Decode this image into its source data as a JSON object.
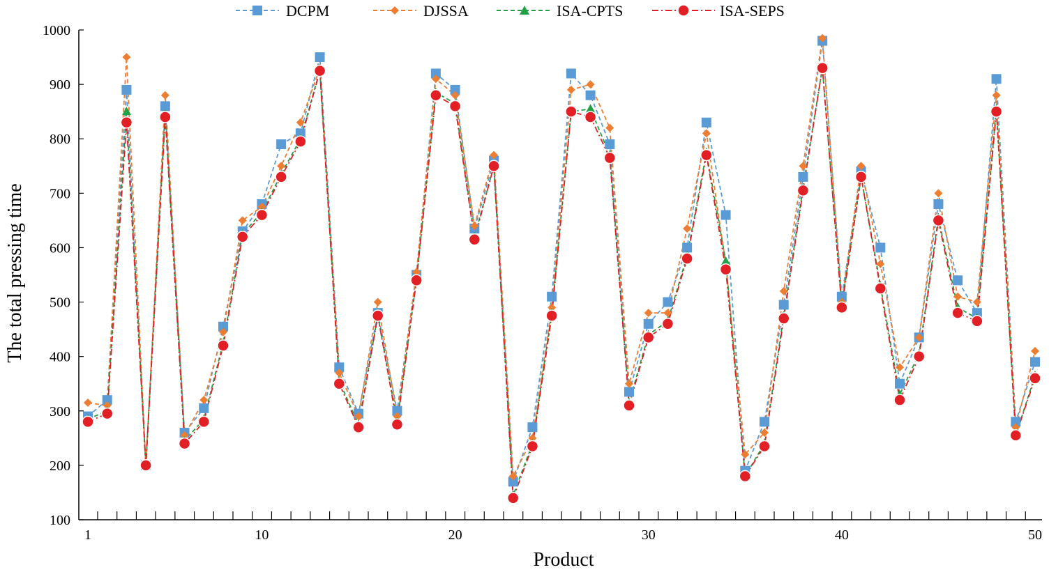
{
  "chart_data": {
    "type": "line",
    "title": "",
    "xlabel": "Product",
    "ylabel": "The total pressing time",
    "ylim": [
      100,
      1000
    ],
    "yticks": [
      100,
      200,
      300,
      400,
      500,
      600,
      700,
      800,
      900,
      1000
    ],
    "xlim": [
      1,
      50
    ],
    "xtick_labels": [
      {
        "value": 1,
        "label": "1"
      },
      {
        "value": 10,
        "label": "10"
      },
      {
        "value": 20,
        "label": "20"
      },
      {
        "value": 30,
        "label": "30"
      },
      {
        "value": 40,
        "label": "40"
      },
      {
        "value": 50,
        "label": "50"
      }
    ],
    "grid": false,
    "legend_position": "top-center",
    "x": [
      1,
      2,
      3,
      4,
      5,
      6,
      7,
      8,
      9,
      10,
      11,
      12,
      13,
      14,
      15,
      16,
      17,
      18,
      19,
      20,
      21,
      22,
      23,
      24,
      25,
      26,
      27,
      28,
      29,
      30,
      31,
      32,
      33,
      34,
      35,
      36,
      37,
      38,
      39,
      40,
      41,
      42,
      43,
      44,
      45,
      46,
      47,
      48,
      49,
      50
    ],
    "series": [
      {
        "name": "DCPM",
        "color": "#5b9bd5",
        "marker": "square",
        "values": [
          290,
          320,
          890,
          200,
          860,
          260,
          305,
          455,
          630,
          680,
          790,
          810,
          950,
          380,
          295,
          480,
          300,
          550,
          920,
          890,
          635,
          760,
          170,
          270,
          510,
          920,
          880,
          790,
          335,
          460,
          500,
          600,
          830,
          660,
          190,
          280,
          495,
          730,
          980,
          510,
          740,
          600,
          350,
          435,
          680,
          540,
          480,
          910,
          280,
          390
        ]
      },
      {
        "name": "DJSSA",
        "color": "#ed7d31",
        "marker": "diamond",
        "values": [
          315,
          310,
          950,
          200,
          880,
          255,
          320,
          445,
          650,
          675,
          750,
          830,
          930,
          370,
          290,
          500,
          290,
          555,
          910,
          880,
          640,
          770,
          180,
          250,
          490,
          890,
          900,
          820,
          350,
          480,
          480,
          635,
          810,
          570,
          220,
          260,
          520,
          750,
          985,
          500,
          750,
          570,
          380,
          435,
          700,
          510,
          500,
          880,
          270,
          410
        ]
      },
      {
        "name": "ISA-CPTS",
        "color": "#21a144",
        "marker": "triangle",
        "values": [
          285,
          300,
          850,
          200,
          845,
          245,
          285,
          425,
          625,
          665,
          735,
          800,
          925,
          355,
          275,
          475,
          280,
          540,
          885,
          865,
          620,
          750,
          145,
          240,
          480,
          850,
          855,
          770,
          315,
          440,
          465,
          585,
          775,
          575,
          180,
          240,
          475,
          710,
          930,
          495,
          730,
          530,
          330,
          405,
          655,
          490,
          470,
          855,
          255,
          365
        ]
      },
      {
        "name": "ISA-SEPS",
        "color": "#e31f26",
        "marker": "circle",
        "values": [
          280,
          295,
          830,
          200,
          840,
          240,
          280,
          420,
          620,
          660,
          730,
          795,
          925,
          350,
          270,
          475,
          275,
          540,
          880,
          860,
          615,
          750,
          140,
          235,
          475,
          850,
          840,
          765,
          310,
          435,
          460,
          580,
          770,
          560,
          180,
          235,
          470,
          705,
          930,
          490,
          730,
          525,
          320,
          400,
          650,
          480,
          465,
          850,
          255,
          360
        ]
      }
    ]
  }
}
